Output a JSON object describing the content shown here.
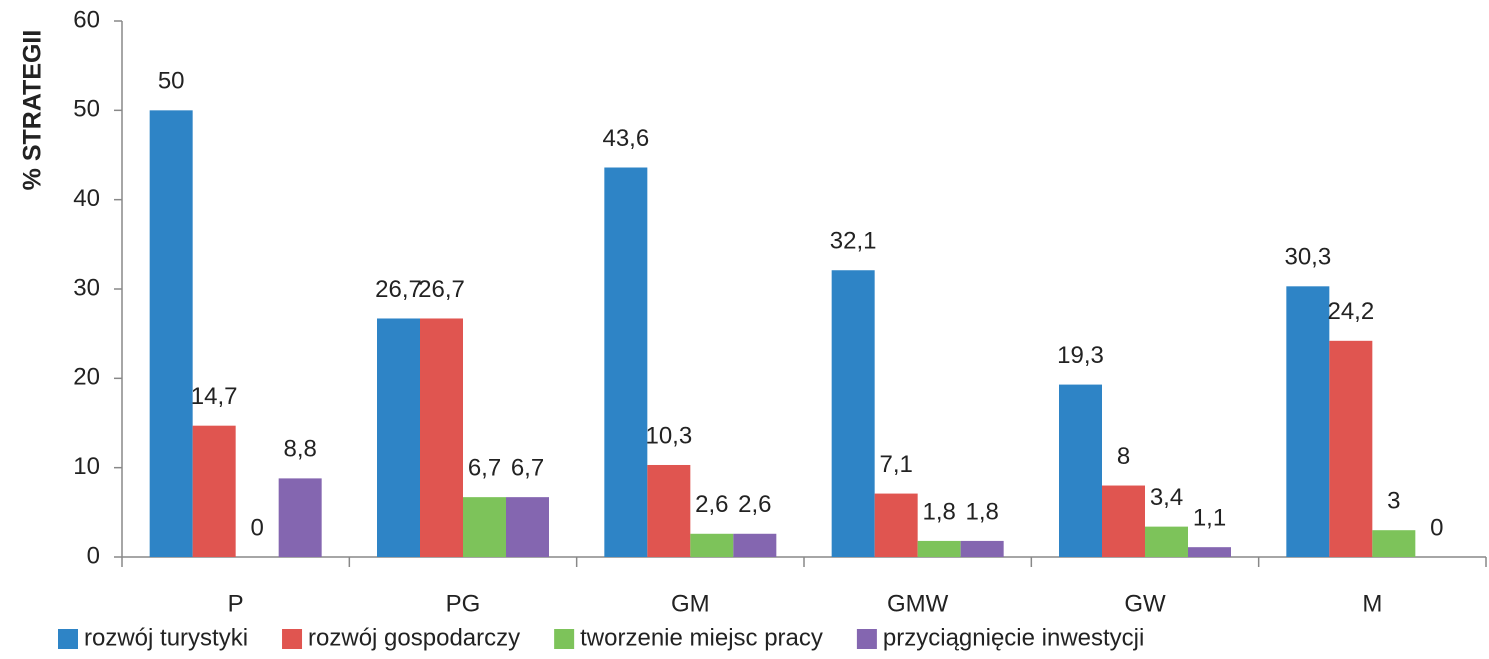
{
  "chart_data": {
    "type": "bar",
    "y_label": "% STRATEGII",
    "categories": [
      "P",
      "PG",
      "GM",
      "GMW",
      "GW",
      "M"
    ],
    "series": [
      {
        "name": "rozwój turystyki",
        "color": "#2e84c6",
        "values": [
          50,
          26.7,
          43.6,
          32.1,
          19.3,
          30.3
        ],
        "value_labels": [
          "50",
          "26,7",
          "43,6",
          "32,1",
          "19,3",
          "30,3"
        ]
      },
      {
        "name": "rozwój gospodarczy",
        "color": "#e05550",
        "values": [
          14.7,
          26.7,
          10.3,
          7.1,
          8,
          24.2
        ],
        "value_labels": [
          "14,7",
          "26,7",
          "10,3",
          "7,1",
          "8",
          "24,2"
        ]
      },
      {
        "name": "tworzenie miejsc pracy",
        "color": "#7dc35a",
        "values": [
          0,
          6.7,
          2.6,
          1.8,
          3.4,
          3
        ],
        "value_labels": [
          "0",
          "6,7",
          "2,6",
          "1,8",
          "3,4",
          "3"
        ]
      },
      {
        "name": "przyciągnięcie inwestycji",
        "color": "#8466b0",
        "values": [
          8.8,
          6.7,
          2.6,
          1.8,
          1.1,
          0
        ],
        "value_labels": [
          "8,8",
          "6,7",
          "2,6",
          "1,8",
          "1,1",
          "0"
        ]
      }
    ],
    "ylim": [
      0,
      60
    ],
    "yticks": [
      0,
      10,
      20,
      30,
      40,
      50,
      60
    ],
    "grid": false,
    "legend": "bottom"
  }
}
